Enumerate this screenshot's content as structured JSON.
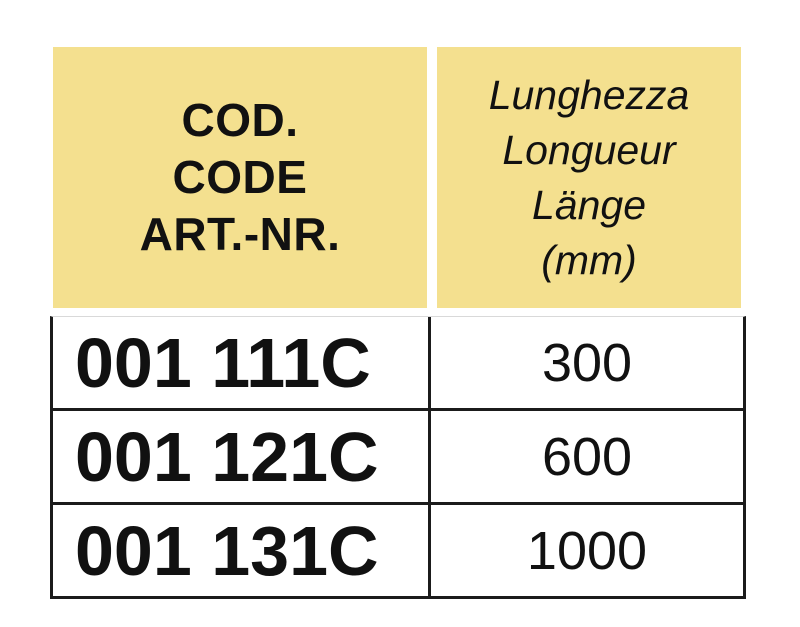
{
  "table": {
    "header": {
      "code_lines": [
        "COD.",
        "CODE",
        "ART.-NR."
      ],
      "length_lines": [
        "Lunghezza",
        "Longueur",
        "Länge",
        "(mm)"
      ]
    },
    "rows": [
      {
        "code": "001 111C",
        "length_mm": "300"
      },
      {
        "code": "001 121C",
        "length_mm": "600"
      },
      {
        "code": "001 131C",
        "length_mm": "1000"
      }
    ]
  },
  "colors": {
    "header_bg": "#F4E08F",
    "border": "#1b1b1b",
    "text": "#111111",
    "faint_top_rule": "#d9d9d9"
  }
}
